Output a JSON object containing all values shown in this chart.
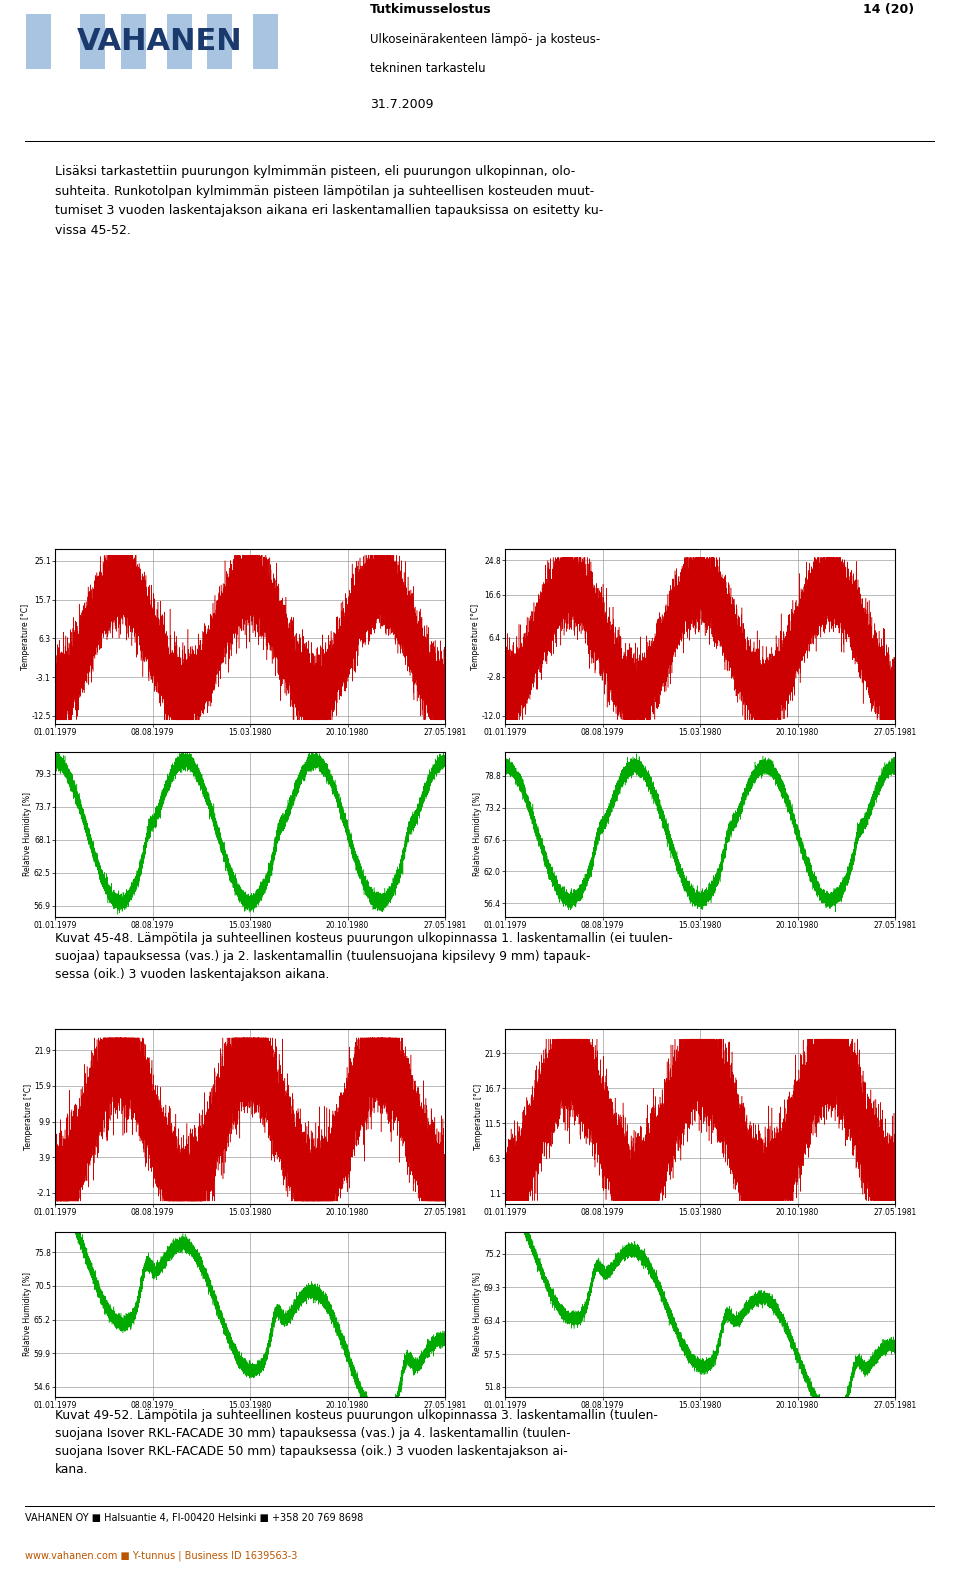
{
  "page_width": 9.6,
  "page_height": 15.79,
  "bg_color": "#ffffff",
  "header": {
    "logo_text": "VAHANEN",
    "logo_color": "#1a3a6e",
    "logo_bg": "#a8c4e0",
    "report_title": "Tutkimusselostus",
    "report_subtitle1": "Ulkoseinärakenteen lämpö- ja kosteus-",
    "report_subtitle2": "tekninen tarkastelu",
    "page_num": "14 (20)",
    "date": "31.7.2009"
  },
  "body_text": "Lisäksi tarkastettiin puurungon kylmimmän pisteen, eli puurungon ulkopinnan, olo-\nsuhteita. Runkotolpan kylmimmän pisteen lämpötilan ja suhteellisen kosteuden muut-\ntumiset 3 vuoden laskentajakson aikana eri laskentamallien tapauksissa on esitetty ku-\nvissa 45-52.",
  "caption1_line1": "Kuvat 45-48. Lämpötila ja suhteellinen kosteus puurungon ulkopinnassa 1. laskentamallin (ei tuulen-",
  "caption1_line2": "suojaa) tapauksessa (vas.) ja 2. laskentamallin (tuulensuojana kipsilevy 9 mm) tapauk-",
  "caption1_line3": "sessa (oik.) 3 vuoden laskentajakson aikana.",
  "caption2_line1": "Kuvat 49-52. Lämpötila ja suhteellinen kosteus puurungon ulkopinnassa 3. laskentamallin (tuulen-",
  "caption2_line2": "suojana Isover RKL-FACADE 30 mm) tapauksessa (vas.) ja 4. laskentamallin (tuulen-",
  "caption2_line3": "suojana Isover RKL-FACADE 50 mm) tapauksessa (oik.) 3 vuoden laskentajakson ai-",
  "caption2_line4": "kana.",
  "footer_line1": "VAHANEN OY ■ Halsuantie 4, FI-00420 Helsinki ■ +358 20 769 8698",
  "footer_line2": "www.vahanen.com ■ Y-tunnus | Business ID 1639563-3",
  "chart1_temp": {
    "yticks": [
      25.1,
      15.7,
      6.3,
      -3.1,
      -12.5
    ],
    "ymin": -14.5,
    "ymax": 28.0,
    "xtick_labels": [
      "01.01.1979",
      "08.08.1979",
      "15.03.1980",
      "20.10.1980",
      "27.05.1981"
    ],
    "ylabel": "Temperature [°C]",
    "color": "#cc0000"
  },
  "chart2_temp": {
    "yticks": [
      24.8,
      16.6,
      6.4,
      -2.8,
      -12.0
    ],
    "ymin": -14.0,
    "ymax": 27.5,
    "xtick_labels": [
      "01.01.1979",
      "08.08.1979",
      "15.03.1980",
      "20.10.1980",
      "27.05.1981"
    ],
    "ylabel": "Temperature [°C]",
    "color": "#cc0000"
  },
  "chart1_rh": {
    "yticks": [
      79.3,
      73.7,
      68.1,
      62.5,
      56.9
    ],
    "ymin": 55.0,
    "ymax": 83.0,
    "xtick_labels": [
      "01.01.1979",
      "08.08.1979",
      "15.03.1980",
      "20.10.1980",
      "27.05.1981"
    ],
    "ylabel": "Relative Humidity [%]",
    "color": "#00aa00"
  },
  "chart2_rh": {
    "yticks": [
      78.8,
      73.2,
      67.6,
      62.0,
      56.4
    ],
    "ymin": 54.0,
    "ymax": 83.0,
    "xtick_labels": [
      "01.01.1979",
      "08.08.1979",
      "15.03.1980",
      "20.10.1980",
      "27.05.1981"
    ],
    "ylabel": "Relative Humidity [%]",
    "color": "#00aa00"
  },
  "chart3_temp": {
    "yticks": [
      21.9,
      15.9,
      9.9,
      3.9,
      -2.1
    ],
    "ymin": -4.0,
    "ymax": 25.5,
    "xtick_labels": [
      "01.01.1979",
      "08.08.1979",
      "15.03.1980",
      "20.10.1980",
      "27.05.1981"
    ],
    "ylabel": "Temperature [°C]",
    "color": "#cc0000"
  },
  "chart4_temp": {
    "yticks": [
      21.9,
      16.7,
      11.5,
      6.3,
      1.1
    ],
    "ymin": -0.5,
    "ymax": 25.5,
    "xtick_labels": [
      "01.01.1979",
      "08.08.1979",
      "15.03.1980",
      "20.10.1980",
      "27.05.1981"
    ],
    "ylabel": "Temperature [°C]",
    "color": "#cc0000"
  },
  "chart3_rh": {
    "yticks": [
      75.8,
      70.5,
      65.2,
      59.9,
      54.6
    ],
    "ymin": 53.0,
    "ymax": 79.0,
    "xtick_labels": [
      "01.01.1979",
      "08.08.1979",
      "15.03.1980",
      "20.10.1980",
      "27.05.1981"
    ],
    "ylabel": "Relative Humidity [%]",
    "color": "#00aa00"
  },
  "chart4_rh": {
    "yticks": [
      75.2,
      69.3,
      63.4,
      57.5,
      51.8
    ],
    "ymin": 50.0,
    "ymax": 79.0,
    "xtick_labels": [
      "01.01.1979",
      "08.08.1979",
      "15.03.1980",
      "20.10.1980",
      "27.05.1981"
    ],
    "ylabel": "Relative Humidity [%]",
    "color": "#00aa00"
  }
}
